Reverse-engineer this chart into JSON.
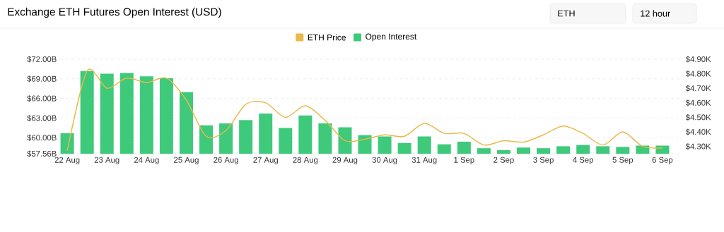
{
  "chart_data": {
    "type": "bar",
    "title": "Exchange ETH Futures Open Interest (USD)",
    "annotations": [
      "ETH",
      "12 hour"
    ],
    "categories": [
      "22 Aug",
      null,
      "23 Aug",
      null,
      "24 Aug",
      null,
      "25 Aug",
      null,
      "26 Aug",
      null,
      "27 Aug",
      null,
      "28 Aug",
      null,
      "29 Aug",
      null,
      "30 Aug",
      null,
      "31 Aug",
      null,
      "1 Sep",
      null,
      "2 Sep",
      null,
      "3 Sep",
      null,
      "4 Sep",
      null,
      "5 Sep",
      null,
      "6 Sep"
    ],
    "series": [
      {
        "name": "ETH Price",
        "type": "line",
        "axis": "y2",
        "color": "#e9b949",
        "values": [
          4.27,
          4.82,
          4.7,
          4.77,
          4.74,
          4.77,
          4.62,
          4.37,
          4.41,
          4.59,
          4.6,
          4.5,
          4.58,
          4.48,
          4.34,
          4.35,
          4.38,
          4.37,
          4.46,
          4.39,
          4.39,
          4.31,
          4.34,
          4.33,
          4.38,
          4.44,
          4.39,
          4.31,
          4.4,
          4.3,
          4.29
        ]
      },
      {
        "name": "Open Interest",
        "color": "#3ec97b",
        "values": [
          60.7,
          70.2,
          69.8,
          69.9,
          69.4,
          69.1,
          67.0,
          61.9,
          62.2,
          62.7,
          63.7,
          61.5,
          63.4,
          62.2,
          61.6,
          60.4,
          60.2,
          59.2,
          60.2,
          59.0,
          59.4,
          58.4,
          58.1,
          58.5,
          58.4,
          58.7,
          58.9,
          58.7,
          58.6,
          58.8,
          58.8
        ]
      }
    ],
    "ylim": [
      57.56,
      72
    ],
    "yticks": [
      {
        "value": 57.56,
        "label": "$57.56B"
      },
      {
        "value": 60,
        "label": "$60.00B"
      },
      {
        "value": 63,
        "label": "$63.00B"
      },
      {
        "value": 66,
        "label": "$66.00B"
      },
      {
        "value": 69,
        "label": "$69.00B"
      },
      {
        "value": 72,
        "label": "$72.00B"
      }
    ],
    "y2lim": [
      4.25,
      4.9
    ],
    "y2ticks": [
      {
        "value": 4.3,
        "label": "$4.30K"
      },
      {
        "value": 4.4,
        "label": "$4.40K"
      },
      {
        "value": 4.5,
        "label": "$4.50K"
      },
      {
        "value": 4.6,
        "label": "$4.60K"
      },
      {
        "value": 4.7,
        "label": "$4.70K"
      },
      {
        "value": 4.8,
        "label": "$4.80K"
      },
      {
        "value": 4.9,
        "label": "$4.90K"
      }
    ],
    "grid": "y",
    "legend": "top"
  }
}
